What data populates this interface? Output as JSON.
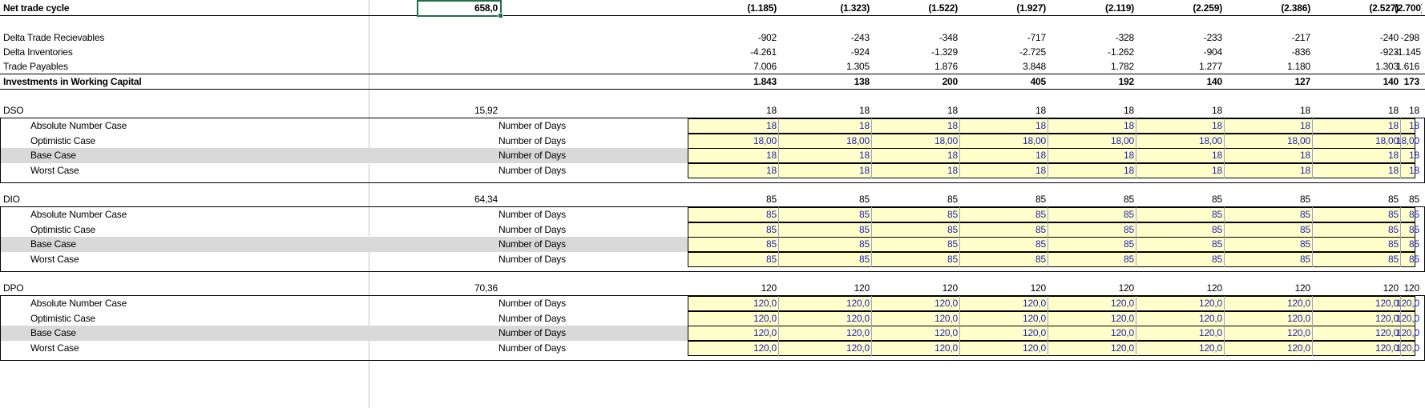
{
  "header_row": {
    "label": "Net trade cycle",
    "b_value": "658,0",
    "values": [
      "(1.185)",
      "(1.323)",
      "(1.522)",
      "(1.927)",
      "(2.119)",
      "(2.259)",
      "(2.386)",
      "(2.527)",
      "(2.700)"
    ]
  },
  "delta_rows": [
    {
      "label": "Delta Trade Recievables",
      "values": [
        "-902",
        "-243",
        "-348",
        "-717",
        "-328",
        "-233",
        "-217",
        "-240",
        "-298"
      ]
    },
    {
      "label": "Delta Inventories",
      "values": [
        "-4.261",
        "-924",
        "-1.329",
        "-2.725",
        "-1.262",
        "-904",
        "-836",
        "-923",
        "-1.145"
      ]
    },
    {
      "label": "Trade Payables",
      "values": [
        "7.006",
        "1.305",
        "1.876",
        "3.848",
        "1.782",
        "1.277",
        "1.180",
        "1.303",
        "1.616"
      ]
    }
  ],
  "investments_row": {
    "label": "Investments in Working Capital",
    "values": [
      "1.843",
      "138",
      "200",
      "405",
      "192",
      "140",
      "127",
      "140",
      "173"
    ]
  },
  "sections": [
    {
      "label": "DSO",
      "b_value": "15,92",
      "values": [
        "18",
        "18",
        "18",
        "18",
        "18",
        "18",
        "18",
        "18",
        "18"
      ],
      "cases": [
        {
          "label": "Absolute Number Case",
          "unit": "Number of Days",
          "values": [
            "18",
            "18",
            "18",
            "18",
            "18",
            "18",
            "18",
            "18",
            "18"
          ]
        },
        {
          "label": "Optimistic Case",
          "unit": "Number of Days",
          "values": [
            "18,00",
            "18,00",
            "18,00",
            "18,00",
            "18,00",
            "18,00",
            "18,00",
            "18,00",
            "18,00"
          ]
        },
        {
          "label": "Base Case",
          "unit": "Number of Days",
          "values": [
            "18",
            "18",
            "18",
            "18",
            "18",
            "18",
            "18",
            "18",
            "18"
          ]
        },
        {
          "label": "Worst Case",
          "unit": "Number of Days",
          "values": [
            "18",
            "18",
            "18",
            "18",
            "18",
            "18",
            "18",
            "18",
            "18"
          ]
        }
      ]
    },
    {
      "label": "DIO",
      "b_value": "64,34",
      "values": [
        "85",
        "85",
        "85",
        "85",
        "85",
        "85",
        "85",
        "85",
        "85"
      ],
      "cases": [
        {
          "label": "Absolute Number Case",
          "unit": "Number of Days",
          "values": [
            "85",
            "85",
            "85",
            "85",
            "85",
            "85",
            "85",
            "85",
            "85"
          ]
        },
        {
          "label": "Optimistic Case",
          "unit": "Number of Days",
          "values": [
            "85",
            "85",
            "85",
            "85",
            "85",
            "85",
            "85",
            "85",
            "85"
          ]
        },
        {
          "label": "Base Case",
          "unit": "Number of Days",
          "values": [
            "85",
            "85",
            "85",
            "85",
            "85",
            "85",
            "85",
            "85",
            "85"
          ]
        },
        {
          "label": "Worst Case",
          "unit": "Number of Days",
          "values": [
            "85",
            "85",
            "85",
            "85",
            "85",
            "85",
            "85",
            "85",
            "85"
          ]
        }
      ]
    },
    {
      "label": "DPO",
      "b_value": "70,36",
      "values": [
        "120",
        "120",
        "120",
        "120",
        "120",
        "120",
        "120",
        "120",
        "120"
      ],
      "cases": [
        {
          "label": "Absolute Number Case",
          "unit": "Number of Days",
          "values": [
            "120,0",
            "120,0",
            "120,0",
            "120,0",
            "120,0",
            "120,0",
            "120,0",
            "120,0",
            "120,0"
          ]
        },
        {
          "label": "Optimistic Case",
          "unit": "Number of Days",
          "values": [
            "120,0",
            "120,0",
            "120,0",
            "120,0",
            "120,0",
            "120,0",
            "120,0",
            "120,0",
            "120,0"
          ]
        },
        {
          "label": "Base Case",
          "unit": "Number of Days",
          "values": [
            "120,0",
            "120,0",
            "120,0",
            "120,0",
            "120,0",
            "120,0",
            "120,0",
            "120,0",
            "120,0"
          ]
        },
        {
          "label": "Worst Case",
          "unit": "Number of Days",
          "values": [
            "120,0",
            "120,0",
            "120,0",
            "120,0",
            "120,0",
            "120,0",
            "120,0",
            "120,0",
            "120,0"
          ]
        }
      ]
    }
  ],
  "colors": {
    "input_fill": "#ffffcc",
    "input_text": "#1f1fb4",
    "base_case_fill": "#d9d9d9",
    "selection": "#1e7145"
  }
}
